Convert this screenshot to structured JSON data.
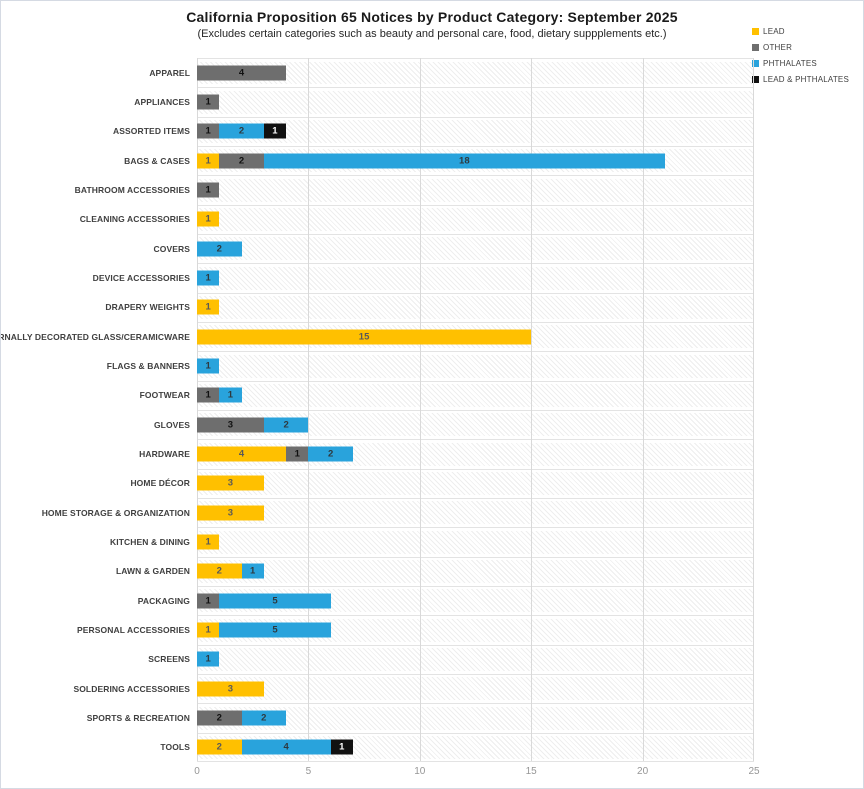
{
  "page": {
    "title": "California Proposition 65 Notices by Product Category: September 2025",
    "subtitle": "(Excludes certain categories such as beauty and personal care, food, dietary suppplements etc.)"
  },
  "legend": {
    "position": "top-right",
    "items": [
      {
        "label": "LEAD",
        "color": "#FFC000"
      },
      {
        "label": "OTHER",
        "color": "#6E6E6E"
      },
      {
        "label": "PHTHALATES",
        "color": "#29A3DC"
      },
      {
        "label": "LEAD & PHTHALATES",
        "color": "#111111"
      }
    ]
  },
  "chart_data": {
    "type": "bar",
    "orientation": "horizontal",
    "stacked": true,
    "title": "California Proposition 65 Notices by Product Category: September 2025",
    "xlabel": "",
    "ylabel": "",
    "xlim": [
      0,
      25
    ],
    "x_ticks": [
      0,
      5,
      10,
      15,
      20,
      25
    ],
    "grid": true,
    "legend_position": "top-right",
    "categories": [
      "APPAREL",
      "APPLIANCES",
      "ASSORTED ITEMS",
      "BAGS & CASES",
      "BATHROOM ACCESSORIES",
      "CLEANING ACCESSORIES",
      "COVERS",
      "DEVICE ACCESSORIES",
      "DRAPERY WEIGHTS",
      "EXTERNALLY DECORATED GLASS/CERAMICWARE",
      "FLAGS & BANNERS",
      "FOOTWEAR",
      "GLOVES",
      "HARDWARE",
      "HOME DÉCOR",
      "HOME STORAGE & ORGANIZATION",
      "KITCHEN & DINING",
      "LAWN & GARDEN",
      "PACKAGING",
      "PERSONAL ACCESSORIES",
      "SCREENS",
      "SOLDERING ACCESSORIES",
      "SPORTS & RECREATION",
      "TOOLS"
    ],
    "series": [
      {
        "name": "LEAD",
        "color": "#FFC000",
        "label_color": "#595959",
        "values": [
          0,
          0,
          0,
          1,
          0,
          1,
          0,
          0,
          1,
          15,
          0,
          0,
          0,
          4,
          3,
          3,
          1,
          2,
          0,
          1,
          0,
          3,
          0,
          2
        ]
      },
      {
        "name": "OTHER",
        "color": "#6E6E6E",
        "label_color": "#111111",
        "values": [
          4,
          1,
          1,
          2,
          1,
          0,
          0,
          0,
          0,
          0,
          0,
          1,
          3,
          1,
          0,
          0,
          0,
          0,
          1,
          0,
          0,
          0,
          2,
          0
        ]
      },
      {
        "name": "PHTHALATES",
        "color": "#29A3DC",
        "label_color": "#2e3a40",
        "values": [
          0,
          0,
          2,
          18,
          0,
          0,
          2,
          1,
          0,
          0,
          1,
          1,
          2,
          2,
          0,
          0,
          0,
          1,
          5,
          5,
          1,
          0,
          2,
          4
        ]
      },
      {
        "name": "LEAD & PHTHALATES",
        "color": "#111111",
        "label_color": "#FFFFFF",
        "values": [
          0,
          0,
          1,
          0,
          0,
          0,
          0,
          0,
          0,
          0,
          0,
          0,
          0,
          0,
          0,
          0,
          0,
          0,
          0,
          0,
          0,
          0,
          0,
          1
        ]
      }
    ]
  }
}
